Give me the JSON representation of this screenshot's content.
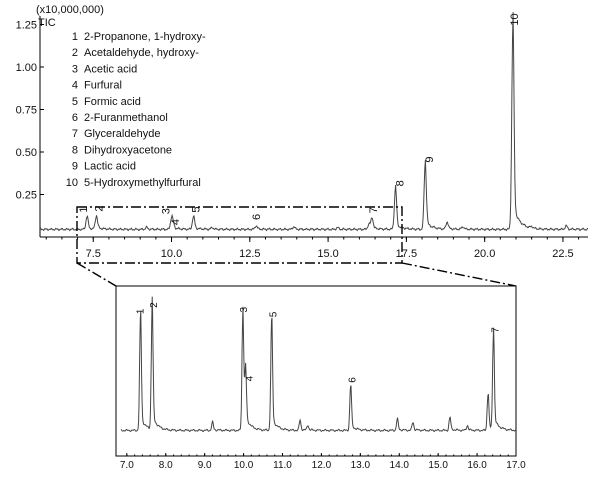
{
  "chart_data": [
    {
      "type": "line",
      "panel": "main",
      "scale_label": "(x10,000,000)",
      "series_label": "TIC",
      "xlim": [
        5.8,
        23.3
      ],
      "ylim": [
        0,
        1.3
      ],
      "x_ticks": [
        "7.5",
        "10.0",
        "12.5",
        "15.0",
        "17.5",
        "20.0",
        "22.5"
      ],
      "y_ticks": [
        "0.25",
        "0.50",
        "0.75",
        "1.00",
        "1.25"
      ],
      "legend": [
        {
          "num": "1",
          "name": "2-Propanone, 1-hydroxy-"
        },
        {
          "num": "2",
          "name": "Acetaldehyde, hydroxy-"
        },
        {
          "num": "3",
          "name": "Acetic acid"
        },
        {
          "num": "4",
          "name": "Furfural"
        },
        {
          "num": "5",
          "name": "Formic acid"
        },
        {
          "num": "6",
          "name": "2-Furanmethanol"
        },
        {
          "num": "7",
          "name": "Glyceraldehyde"
        },
        {
          "num": "8",
          "name": "Dihydroxyacetone"
        },
        {
          "num": "9",
          "name": "Lactic acid"
        },
        {
          "num": "10",
          "name": "5-Hydroxymethylfurfural"
        }
      ],
      "baseline": 0.045,
      "peaks": [
        {
          "label": "1",
          "x": 7.3,
          "y": 0.12
        },
        {
          "label": "2",
          "x": 7.6,
          "y": 0.12
        },
        {
          "label": "3",
          "x": 10.0,
          "y": 0.11
        },
        {
          "label": "4",
          "x": 10.05,
          "y": 0.07
        },
        {
          "label": "5",
          "x": 10.7,
          "y": 0.12
        },
        {
          "label": "6",
          "x": 12.7,
          "y": 0.065
        },
        {
          "label": "7",
          "x": 16.4,
          "y": 0.11
        },
        {
          "label": "8",
          "x": 17.15,
          "y": 0.28
        },
        {
          "label": "9",
          "x": 18.1,
          "y": 0.42
        },
        {
          "label": "10",
          "x": 20.9,
          "y": 1.22
        }
      ],
      "minor_peaks": [
        {
          "x": 9.2,
          "y": 0.055
        },
        {
          "x": 11.3,
          "y": 0.055
        },
        {
          "x": 13.9,
          "y": 0.06
        },
        {
          "x": 15.3,
          "y": 0.055
        },
        {
          "x": 16.3,
          "y": 0.075
        },
        {
          "x": 18.8,
          "y": 0.085
        },
        {
          "x": 19.3,
          "y": 0.06
        },
        {
          "x": 21.5,
          "y": 0.055
        },
        {
          "x": 22.6,
          "y": 0.065
        }
      ]
    },
    {
      "type": "line",
      "panel": "zoom",
      "xlim": [
        6.85,
        17.0
      ],
      "ylim": [
        0,
        1.0
      ],
      "x_ticks": [
        "7.0",
        "8.0",
        "9.0",
        "10.0",
        "11.0",
        "12.0",
        "13.0",
        "14.0",
        "15.0",
        "16.0",
        "17.0"
      ],
      "baseline": 0.1,
      "peaks": [
        {
          "label": "1",
          "x": 7.35,
          "y": 0.82
        },
        {
          "label": "2",
          "x": 7.65,
          "y": 0.86
        },
        {
          "label": "3",
          "x": 9.98,
          "y": 0.83
        },
        {
          "label": "4",
          "x": 10.05,
          "y": 0.44
        },
        {
          "label": "5",
          "x": 10.72,
          "y": 0.8
        },
        {
          "label": "6",
          "x": 12.75,
          "y": 0.38
        },
        {
          "label": "7",
          "x": 16.42,
          "y": 0.7
        }
      ],
      "minor_peaks": [
        {
          "x": 9.2,
          "y": 0.15
        },
        {
          "x": 11.45,
          "y": 0.16
        },
        {
          "x": 11.65,
          "y": 0.13
        },
        {
          "x": 13.95,
          "y": 0.17
        },
        {
          "x": 14.35,
          "y": 0.15
        },
        {
          "x": 15.3,
          "y": 0.18
        },
        {
          "x": 15.75,
          "y": 0.13
        },
        {
          "x": 16.28,
          "y": 0.33
        }
      ]
    }
  ]
}
